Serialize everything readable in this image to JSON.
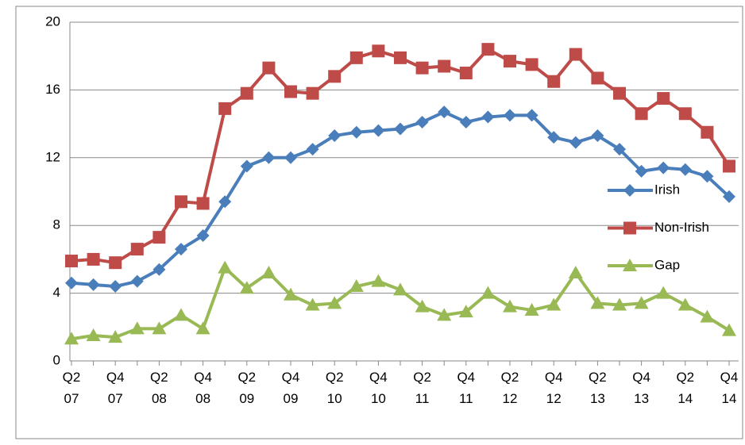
{
  "chart_data": {
    "type": "line",
    "categories": [
      "Q2 07",
      null,
      "Q4 07",
      null,
      "Q2 08",
      null,
      "Q4 08",
      null,
      "Q2 09",
      null,
      "Q4 09",
      null,
      "Q2 10",
      null,
      "Q4 10",
      null,
      "Q2 11",
      null,
      "Q4 11",
      null,
      "Q2 12",
      null,
      "Q4 12",
      null,
      "Q2 13",
      null,
      "Q4 13",
      null,
      "Q2 14",
      null,
      "Q4 14"
    ],
    "series": [
      {
        "name": "Irish",
        "color": "#4a7ebb",
        "marker": "diamond",
        "values": [
          4.6,
          4.5,
          4.4,
          4.7,
          5.4,
          6.6,
          7.4,
          9.4,
          11.5,
          12.0,
          12.0,
          12.5,
          13.3,
          13.5,
          13.6,
          13.7,
          14.1,
          14.7,
          14.1,
          14.4,
          14.5,
          14.5,
          13.2,
          12.9,
          13.3,
          12.5,
          11.2,
          11.4,
          11.3,
          10.9,
          9.7
        ]
      },
      {
        "name": "Non-Irish",
        "color": "#be4b48",
        "marker": "square",
        "values": [
          5.9,
          6.0,
          5.8,
          6.6,
          7.3,
          9.4,
          9.3,
          14.9,
          15.8,
          17.3,
          15.9,
          15.8,
          16.8,
          17.9,
          18.3,
          17.9,
          17.3,
          17.4,
          17.0,
          18.4,
          17.7,
          17.5,
          16.5,
          18.1,
          16.7,
          15.8,
          14.6,
          15.5,
          14.6,
          13.5,
          11.5
        ]
      },
      {
        "name": "Gap",
        "color": "#98b954",
        "marker": "triangle",
        "values": [
          1.3,
          1.5,
          1.4,
          1.9,
          1.9,
          2.7,
          1.9,
          5.5,
          4.3,
          5.2,
          3.9,
          3.3,
          3.4,
          4.4,
          4.7,
          4.2,
          3.2,
          2.7,
          2.9,
          4.0,
          3.2,
          3.0,
          3.3,
          5.2,
          3.4,
          3.3,
          3.4,
          4.0,
          3.3,
          2.6,
          1.8
        ]
      }
    ],
    "ylim": [
      0,
      20
    ],
    "yticks": [
      0,
      4,
      8,
      12,
      16,
      20
    ],
    "grid": true,
    "legend": "right"
  }
}
